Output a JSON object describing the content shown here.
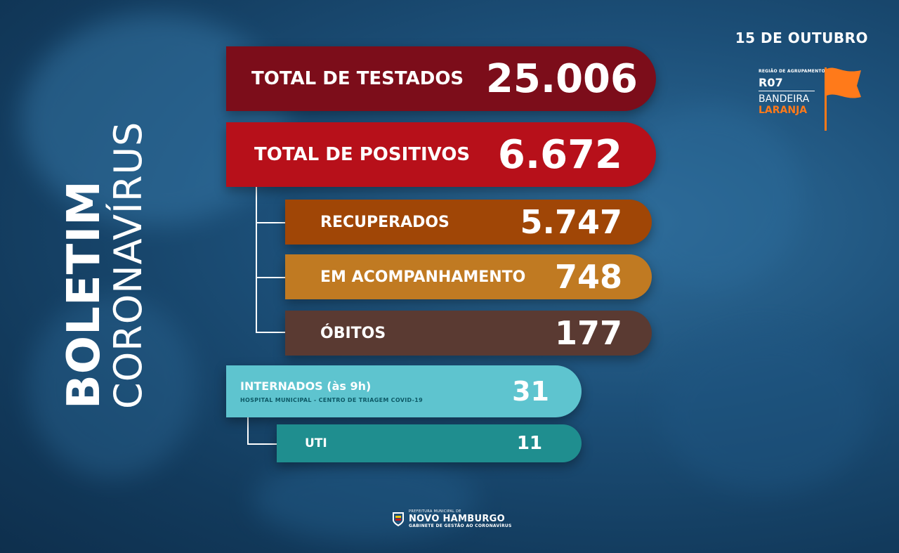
{
  "header": {
    "title_bold": "BOLETIM",
    "title_light": "CORONAVÍRUS",
    "date": "15 DE OUTUBRO"
  },
  "flag": {
    "region_label": "REGIÃO DE AGRUPAMENTO",
    "region_code": "R07",
    "band_label": "BANDEIRA",
    "band_color_name": "LARANJA",
    "band_color": "#ff7a1a"
  },
  "stats": {
    "testados": {
      "label": "TOTAL DE TESTADOS",
      "value": "25.006",
      "color": "#7c0d1a"
    },
    "positivos": {
      "label": "TOTAL DE POSITIVOS",
      "value": "6.672",
      "color": "#b7101a"
    },
    "recuperados": {
      "label": "RECUPERADOS",
      "value": "5.747",
      "color": "#a04606"
    },
    "acompanhamento": {
      "label": "EM ACOMPANHAMENTO",
      "value": "748",
      "color": "#c07a22"
    },
    "obitos": {
      "label": "ÓBITOS",
      "value": "177",
      "color": "#5a3a32"
    },
    "internados": {
      "label": "INTERNADOS (às 9h)",
      "sublabel": "HOSPITAL MUNICIPAL - CENTRO DE TRIAGEM COVID-19",
      "value": "31",
      "color": "#5ec4cf"
    },
    "uti": {
      "label": "UTI",
      "value": "11",
      "color": "#1f8e8f"
    }
  },
  "footer": {
    "org_small": "PREFEITURA MUNICIPAL DE",
    "org_name": "NOVO HAMBURGO",
    "org_sub": "GABINETE DE GESTÃO AO CORONAVÍRUS"
  }
}
